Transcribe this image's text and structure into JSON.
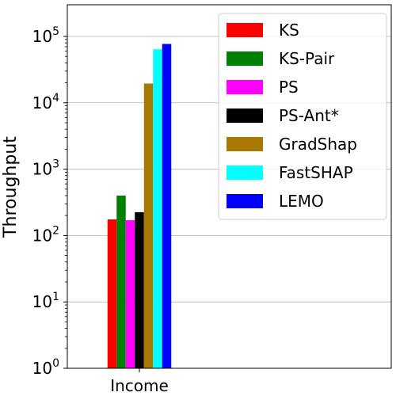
{
  "chart_data": {
    "type": "bar",
    "categories": [
      "Income"
    ],
    "series": [
      {
        "name": "KS",
        "values": [
          175
        ],
        "color": "#ff0000"
      },
      {
        "name": "KS-Pair",
        "values": [
          400
        ],
        "color": "#008000"
      },
      {
        "name": "PS",
        "values": [
          170
        ],
        "color": "#ff00ff"
      },
      {
        "name": "PS-Ant*",
        "values": [
          225
        ],
        "color": "#000000"
      },
      {
        "name": "GradShap",
        "values": [
          19500
        ],
        "color": "#a87800"
      },
      {
        "name": "FastSHAP",
        "values": [
          64000
        ],
        "color": "#00ffff"
      },
      {
        "name": "LEMO",
        "values": [
          77000
        ],
        "color": "#0000ff"
      }
    ],
    "ylabel": "Throughput",
    "xlabel": "",
    "yscale": "log",
    "ylim": [
      1,
      300000
    ],
    "yticks": [
      {
        "value": 1,
        "base": "10",
        "exp": "0"
      },
      {
        "value": 10,
        "base": "10",
        "exp": "1"
      },
      {
        "value": 100,
        "base": "10",
        "exp": "2"
      },
      {
        "value": 1000,
        "base": "10",
        "exp": "3"
      },
      {
        "value": 10000,
        "base": "10",
        "exp": "4"
      },
      {
        "value": 100000,
        "base": "10",
        "exp": "5"
      }
    ],
    "grid": "horizontal",
    "legend_position": "top-right"
  }
}
